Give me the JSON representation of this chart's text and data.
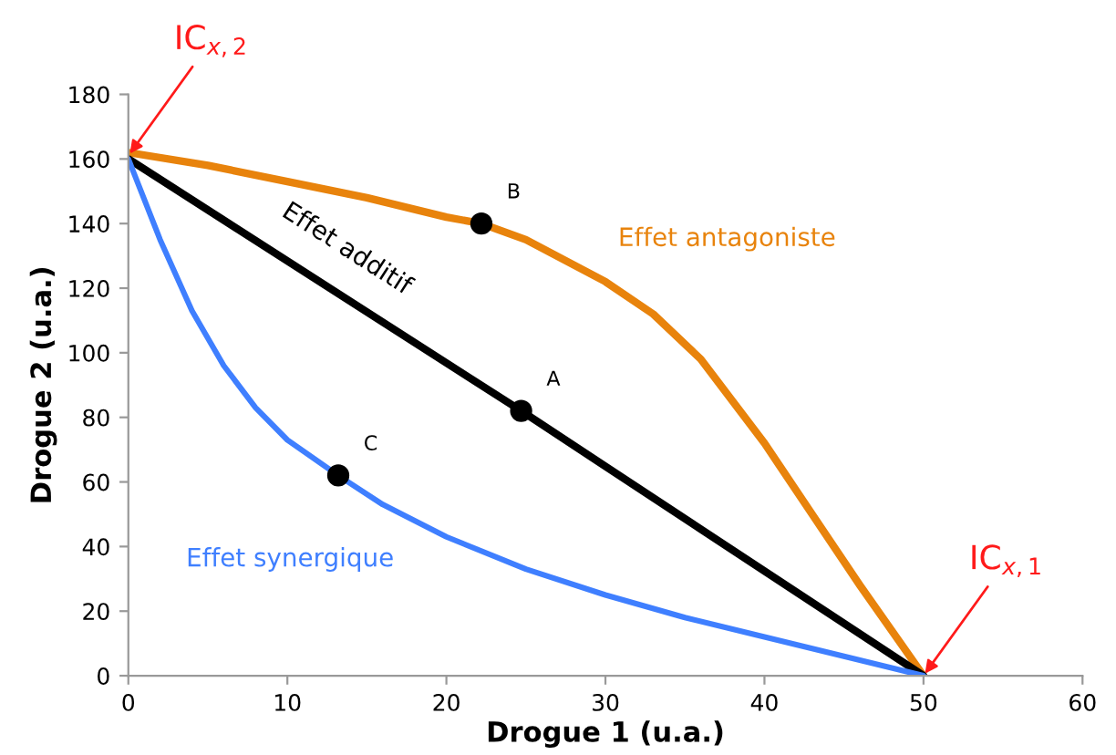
{
  "chart_data": {
    "type": "line",
    "xlabel": "Drogue 1 (u.a.)",
    "ylabel": "Drogue 2 (u.a.)",
    "xlim": [
      0,
      60
    ],
    "ylim": [
      0,
      180
    ],
    "xticks": [
      0,
      10,
      20,
      30,
      40,
      50,
      60
    ],
    "yticks": [
      0,
      20,
      40,
      60,
      80,
      100,
      120,
      140,
      160,
      180
    ],
    "grid": false,
    "marker": "none",
    "line_style": "solid",
    "series": [
      {
        "name": "Effet antagoniste",
        "color": "#e8830c",
        "x": [
          0,
          5,
          10,
          15,
          20,
          22.2,
          25,
          30,
          33,
          36,
          40,
          43,
          46,
          50
        ],
        "values": [
          162,
          158,
          153,
          148,
          142,
          140,
          135,
          122,
          112,
          98,
          72,
          50,
          28,
          0
        ]
      },
      {
        "name": "Effet additif",
        "color": "#000000",
        "x": [
          0,
          24.7,
          50
        ],
        "values": [
          160,
          82,
          0
        ]
      },
      {
        "name": "Effet synergique",
        "color": "#3f7fff",
        "x": [
          0,
          2,
          4,
          6,
          8,
          10,
          13.2,
          16,
          20,
          25,
          30,
          35,
          40,
          45,
          50
        ],
        "values": [
          160,
          135,
          113,
          96,
          83,
          73,
          62,
          53,
          43,
          33,
          25,
          18,
          12,
          6,
          0
        ]
      },
      {
        "type": "scatter",
        "marker": "circle",
        "color": "#000000",
        "x": [
          24.7,
          22.2,
          13.2
        ],
        "values": [
          82,
          140,
          62
        ]
      }
    ],
    "annotations": [
      {
        "text": "A",
        "x": 24.7,
        "y": 82
      },
      {
        "text": "B",
        "x": 22.2,
        "y": 140
      },
      {
        "text": "C",
        "x": 13.2,
        "y": 62
      },
      {
        "text": "IC$_{x,2}$",
        "x": 0,
        "y": 161
      },
      {
        "text": "IC$_{x,1}$",
        "x": 50,
        "y": 0
      }
    ]
  }
}
